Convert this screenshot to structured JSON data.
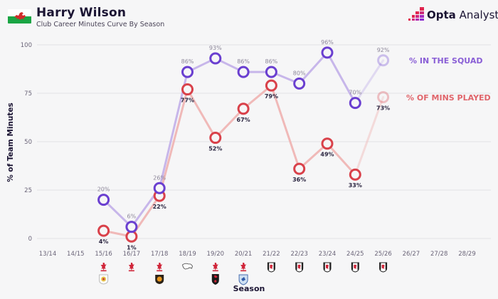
{
  "header": {
    "title": "Harry Wilson",
    "subtitle": "Club Career Minutes Curve By Season",
    "flag_icon": "wales-flag-icon",
    "brand_bold": "Opta",
    "brand_light": "Analyst"
  },
  "colors": {
    "squad": "#6a3fd0",
    "squad_line": "#c7b6ea",
    "mins": "#d9414a",
    "mins_line": "#f0b9b8",
    "background": "#f6f6f7",
    "grid": "#e3e3e6"
  },
  "chart_data": {
    "type": "line",
    "title": "Harry Wilson",
    "subtitle": "Club Career Minutes Curve By Season",
    "xlabel": "Season",
    "ylabel": "% of Team Minutes",
    "ylim": [
      0,
      100
    ],
    "yticks": [
      0,
      25,
      50,
      75,
      100
    ],
    "grid": true,
    "legend_placement": "right",
    "categories": [
      "13/14",
      "14/15",
      "15/16",
      "16/17",
      "17/18",
      "18/19",
      "19/20",
      "20/21",
      "21/22",
      "22/23",
      "23/24",
      "24/25",
      "25/26",
      "26/27",
      "27/28",
      "28/29"
    ],
    "series": [
      {
        "name": "% IN THE SQUAD",
        "values": [
          null,
          null,
          20,
          6,
          26,
          86,
          93,
          86,
          86,
          80,
          96,
          70,
          92,
          null,
          null,
          null
        ],
        "labels": [
          "",
          "",
          "20%",
          "6%",
          "26%",
          "86%",
          "93%",
          "86%",
          "86%",
          "80%",
          "96%",
          "70%",
          "92%",
          "",
          "",
          ""
        ],
        "faded_from_index": 12
      },
      {
        "name": "% OF MINS PLAYED",
        "values": [
          null,
          null,
          4,
          1,
          22,
          77,
          52,
          67,
          79,
          36,
          49,
          33,
          73,
          null,
          null,
          null
        ],
        "labels": [
          "",
          "",
          "4%",
          "1%",
          "22%",
          "77%",
          "52%",
          "67%",
          "79%",
          "36%",
          "49%",
          "33%",
          "73%",
          "",
          "",
          ""
        ],
        "faded_from_index": 12
      }
    ],
    "club_icons": [
      [],
      [],
      [
        "liverpool-crest-icon",
        "crewe-crest-icon"
      ],
      [
        "liverpool-crest-icon"
      ],
      [
        "liverpool-crest-icon",
        "hull-crest-icon"
      ],
      [
        "derby-crest-icon"
      ],
      [
        "liverpool-crest-icon",
        "bournemouth-crest-icon"
      ],
      [
        "liverpool-crest-icon",
        "cardiff-crest-icon"
      ],
      [
        "fulham-crest-icon"
      ],
      [
        "fulham-crest-icon"
      ],
      [
        "fulham-crest-icon"
      ],
      [
        "fulham-crest-icon"
      ],
      [
        "fulham-crest-icon"
      ],
      [],
      [],
      []
    ]
  }
}
